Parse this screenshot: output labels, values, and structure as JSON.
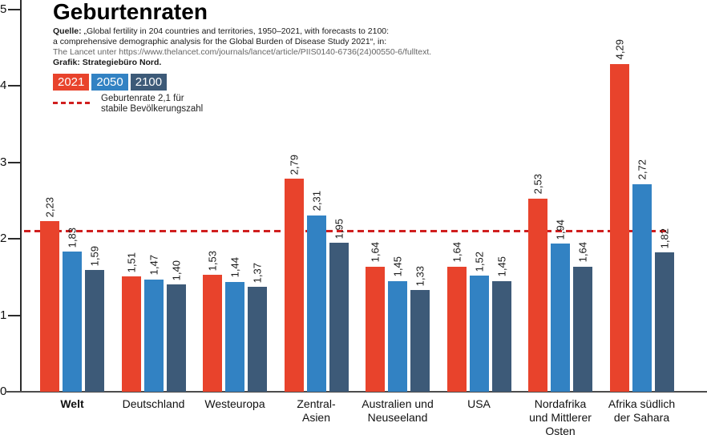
{
  "title": "Geburtenraten",
  "source": {
    "quelle_label": "Quelle:",
    "line1_rest": " „Global fertility in 204 countries and territories, 1950–2021, with forecasts to 2100:",
    "line2": "a comprehensive demographic analysis for the Global Burden of Disease Study 2021“, in:",
    "line3": "The Lancet unter https://www.thelancet.com/journals/lancet/article/PIIS0140-6736(24)00550-6/fulltext.",
    "grafik_line": "Grafik: Strategiebüro Nord."
  },
  "reference_line": {
    "value": 2.1,
    "label_line1": "Geburtenrate 2,1 für",
    "label_line2": "stabile Bevölkerungszahl",
    "color": "#d01f1f"
  },
  "colors": {
    "bar_2021": "#e8432c",
    "bar_2050": "#3282c3",
    "bar_2100": "#3d5a78",
    "axis": "#2b2b2b",
    "baseline": "#4d4d4d",
    "source_url_gray": "#666666"
  },
  "chart_data": {
    "type": "bar",
    "title": "Geburtenraten",
    "categories": [
      "Welt",
      "Deutschland",
      "Westeuropa",
      "Zentral-\nAsien",
      "Australien und\nNeuseeland",
      "USA",
      "Nordafrika\nund Mittlerer\nOsten",
      "Afrika südlich\nder Sahara"
    ],
    "bold_categories": [
      "Welt"
    ],
    "series": [
      {
        "name": "2021",
        "color": "#e8432c",
        "values": [
          2.23,
          1.51,
          1.53,
          2.79,
          1.64,
          1.64,
          2.53,
          4.29
        ]
      },
      {
        "name": "2050",
        "color": "#3282c3",
        "values": [
          1.83,
          1.47,
          1.44,
          2.31,
          1.45,
          1.52,
          1.94,
          2.72
        ]
      },
      {
        "name": "2100",
        "color": "#3d5a78",
        "values": [
          1.59,
          1.4,
          1.37,
          1.95,
          1.33,
          1.45,
          1.64,
          1.82
        ]
      }
    ],
    "ylim": [
      0,
      5
    ],
    "yticks": [
      0,
      1,
      2,
      3,
      4,
      5
    ],
    "value_label_format": "german-comma-2-decimals",
    "value_label_orientation": "vertical",
    "reference_line_value": 2.1,
    "legend_position": "top-left",
    "grid": false,
    "xlabel": "",
    "ylabel": ""
  }
}
